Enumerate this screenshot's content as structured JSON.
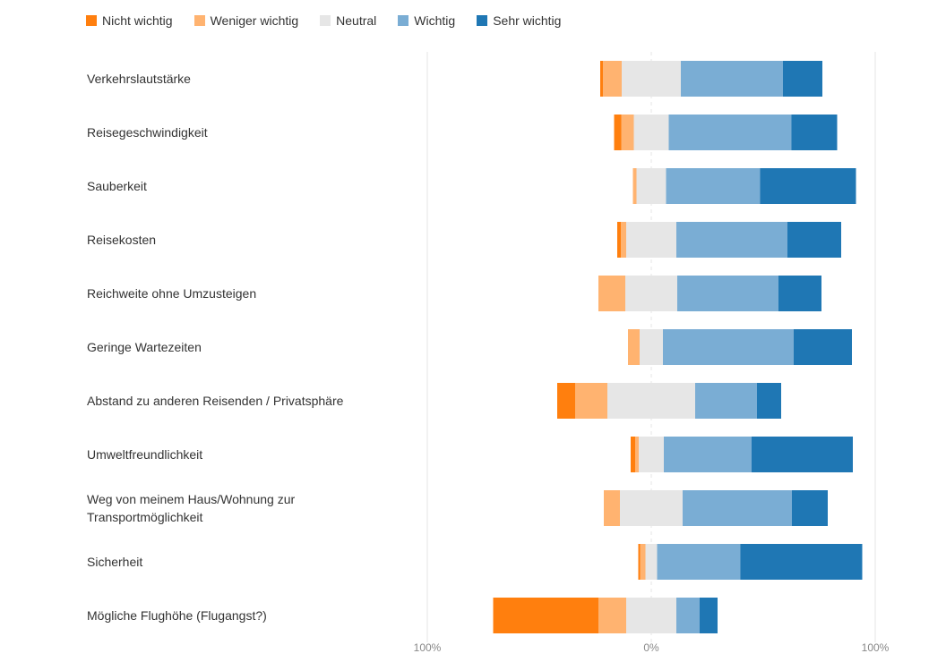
{
  "legend": {
    "items": [
      {
        "label": "Nicht wichtig",
        "color": "#ff7f0e"
      },
      {
        "label": "Weniger wichtig",
        "color": "#ffb370"
      },
      {
        "label": "Neutral",
        "color": "#e6e6e6"
      },
      {
        "label": "Wichtig",
        "color": "#7aadd4"
      },
      {
        "label": "Sehr wichtig",
        "color": "#1f77b4"
      }
    ]
  },
  "chart_data": {
    "type": "bar",
    "orientation": "horizontal",
    "stacked": "diverging",
    "xlim": [
      -100,
      100
    ],
    "ticks": [
      {
        "value": -100,
        "label": "100%"
      },
      {
        "value": 0,
        "label": "0%"
      },
      {
        "value": 100,
        "label": "100%"
      }
    ],
    "legend_position": "top",
    "categories": [
      "Verkehrslautstärke",
      "Reisegeschwindigkeit",
      "Sauberkeit",
      "Reisekosten",
      "Reichweite ohne Umzusteigen",
      "Geringe Wartezeiten",
      "Abstand zu anderen Reisenden / Privatsphäre",
      "Umweltfreundlichkeit",
      "Weg von meinem Haus/Wohnung zur Transportmöglichkeit",
      "Sicherheit",
      "Mögliche Flughöhe (Flugangst?)"
    ],
    "series": [
      {
        "name": "Nicht wichtig",
        "values": [
          1.2,
          3.2,
          0.0,
          1.6,
          0.0,
          0.0,
          8.0,
          2.0,
          0.0,
          0.8,
          47.0
        ]
      },
      {
        "name": "Weniger wichtig",
        "values": [
          8.4,
          5.6,
          1.6,
          2.4,
          12.0,
          5.2,
          14.4,
          1.6,
          7.2,
          2.4,
          12.4
        ]
      },
      {
        "name": "Neutral",
        "values": [
          26.4,
          15.6,
          13.2,
          22.4,
          23.2,
          10.4,
          39.2,
          11.2,
          28.0,
          5.2,
          22.4
        ]
      },
      {
        "name": "Wichtig",
        "values": [
          45.6,
          54.8,
          42.0,
          49.6,
          45.2,
          58.4,
          27.6,
          39.2,
          48.8,
          37.2,
          10.4
        ]
      },
      {
        "name": "Sehr wichtig",
        "values": [
          17.6,
          20.4,
          42.8,
          24.0,
          19.2,
          26.0,
          10.8,
          45.2,
          16.0,
          54.4,
          8.0
        ]
      }
    ]
  }
}
